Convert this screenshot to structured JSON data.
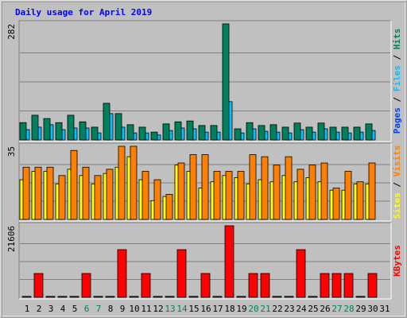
{
  "title": "Daily usage for April 2019",
  "chart_data": [
    {
      "type": "bar",
      "ylim": [
        0,
        282
      ],
      "yticks": [
        282
      ],
      "separator": " / ",
      "series": [
        {
          "name": "Pages",
          "color": "#0040ff",
          "values": [
            0,
            0,
            0,
            0,
            0,
            0,
            0,
            0,
            0,
            0,
            0,
            0,
            0,
            0,
            0,
            0,
            0,
            0,
            0,
            0,
            0,
            0,
            0,
            0,
            0,
            0,
            0,
            0,
            0,
            0,
            null
          ]
        },
        {
          "name": "Files",
          "color": "#00c0ff",
          "values": [
            25,
            31,
            37,
            25,
            29,
            29,
            17,
            64,
            31,
            17,
            17,
            12,
            23,
            29,
            27,
            19,
            19,
            93,
            17,
            27,
            21,
            19,
            17,
            25,
            19,
            27,
            19,
            17,
            19,
            23,
            null
          ]
        },
        {
          "name": "Hits",
          "color": "#00805c",
          "values": [
            42,
            60,
            52,
            42,
            60,
            44,
            31,
            89,
            64,
            37,
            31,
            19,
            39,
            44,
            46,
            35,
            35,
            282,
            27,
            42,
            35,
            37,
            31,
            41,
            31,
            41,
            31,
            31,
            31,
            39,
            null
          ]
        }
      ]
    },
    {
      "type": "bar",
      "ylim": [
        0,
        35
      ],
      "yticks": [
        35
      ],
      "separator": " / ",
      "series": [
        {
          "name": "Sites",
          "color": "#ffff00",
          "values": [
            19,
            23,
            23,
            17,
            24,
            21,
            17,
            22,
            25,
            30,
            19,
            9,
            11,
            26,
            23,
            15,
            18,
            21,
            20,
            17,
            19,
            18,
            21,
            18,
            20,
            18,
            14,
            14,
            17,
            17,
            null
          ]
        },
        {
          "name": "Visits",
          "color": "#ff8000",
          "values": [
            25,
            25,
            25,
            21,
            33,
            25,
            21,
            24,
            35,
            35,
            23,
            19,
            12,
            27,
            31,
            31,
            23,
            23,
            23,
            31,
            30,
            26,
            30,
            24,
            26,
            27,
            15,
            23,
            18,
            27,
            null
          ]
        }
      ]
    },
    {
      "type": "bar",
      "ylim": [
        0,
        21606
      ],
      "yticks": [
        21606
      ],
      "categories": [
        "1",
        "2",
        "3",
        "4",
        "5",
        "6",
        "7",
        "8",
        "9",
        "10",
        "11",
        "12",
        "13",
        "14",
        "15",
        "16",
        "17",
        "18",
        "19",
        "20",
        "21",
        "22",
        "23",
        "24",
        "25",
        "26",
        "27",
        "28",
        "29",
        "30",
        "31"
      ],
      "category_colors": [
        "#000000",
        "#000000",
        "#000000",
        "#000000",
        "#000000",
        "#00805c",
        "#00805c",
        "#000000",
        "#000000",
        "#000000",
        "#000000",
        "#000000",
        "#00805c",
        "#00805c",
        "#000000",
        "#000000",
        "#000000",
        "#000000",
        "#000000",
        "#00805c",
        "#00805c",
        "#000000",
        "#000000",
        "#000000",
        "#000000",
        "#000000",
        "#00805c",
        "#00805c",
        "#000000",
        "#000000",
        "#000000"
      ],
      "series": [
        {
          "name": "KBytes",
          "color": "#ff0000",
          "values": [
            300,
            7202,
            300,
            300,
            300,
            7202,
            300,
            300,
            14404,
            300,
            7202,
            300,
            300,
            14404,
            300,
            7202,
            300,
            21606,
            300,
            7202,
            7202,
            300,
            300,
            14404,
            300,
            7202,
            7202,
            7202,
            300,
            7202,
            null
          ]
        }
      ]
    }
  ]
}
